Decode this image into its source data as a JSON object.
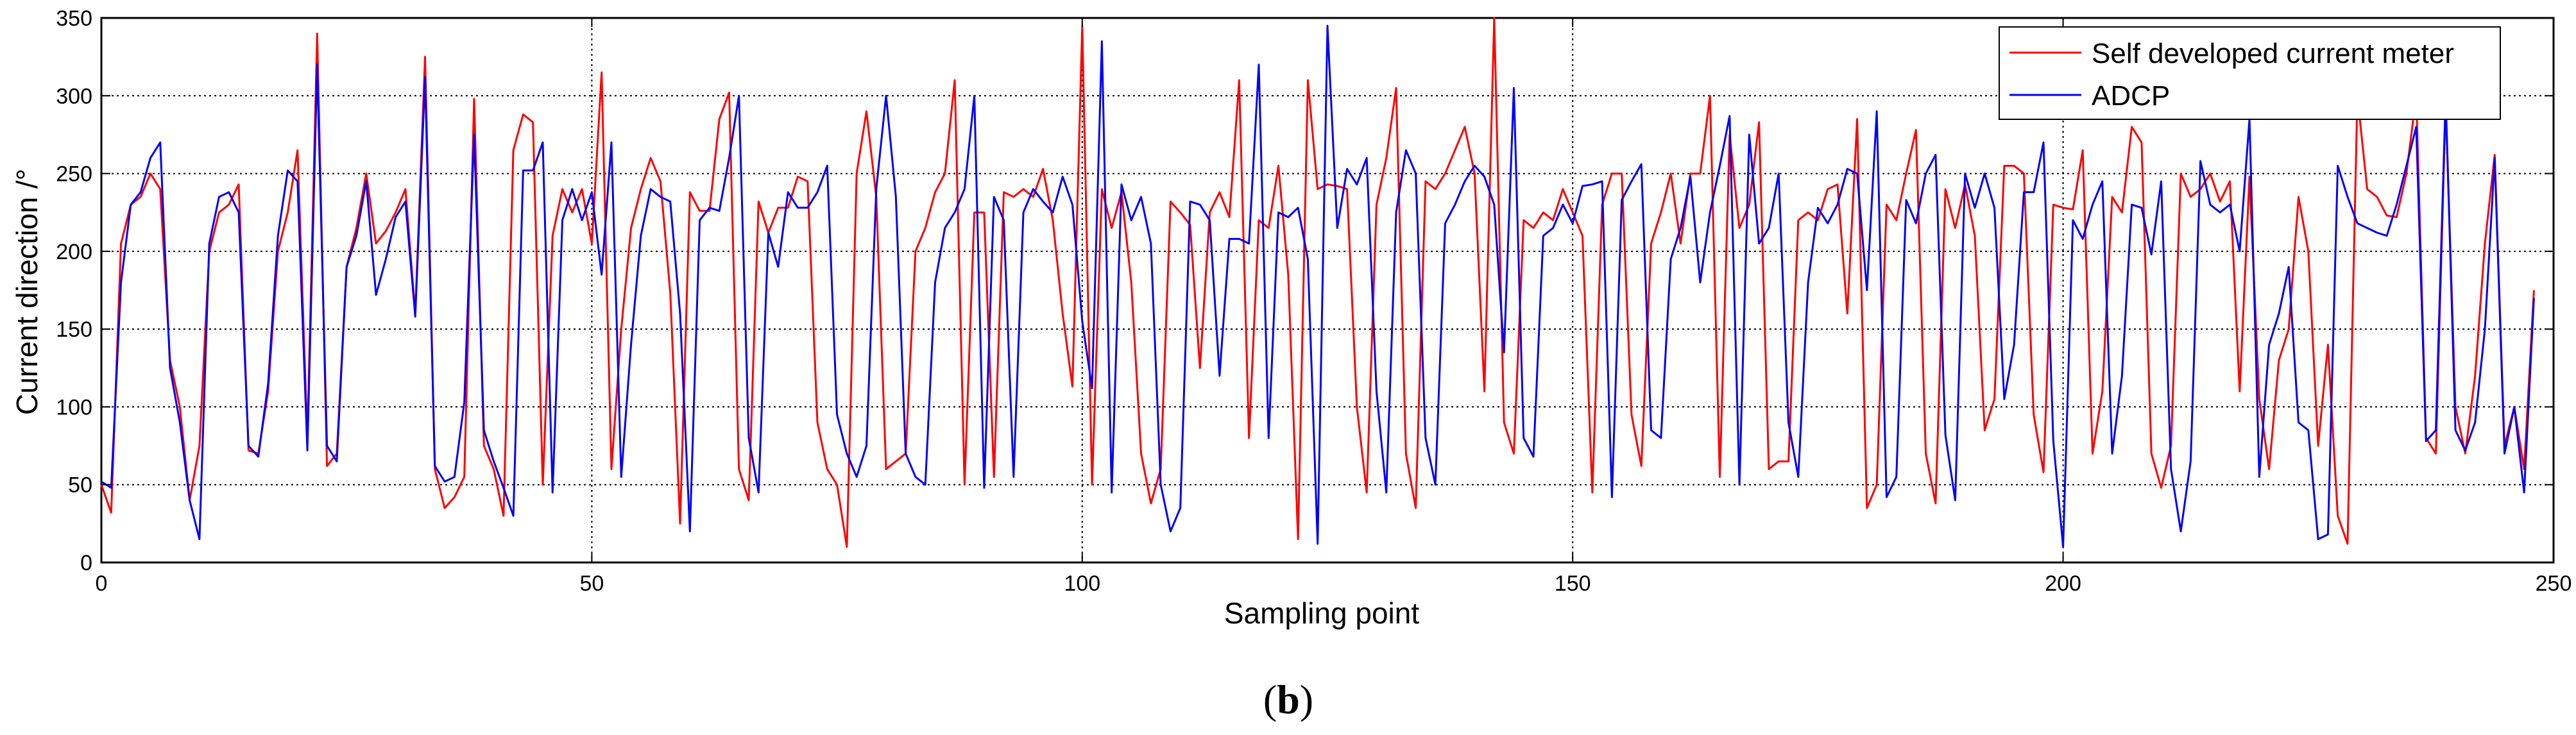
{
  "chart_data": {
    "type": "line",
    "xlabel": "Sampling point",
    "ylabel": "Current direction /°",
    "xlim": [
      0,
      250
    ],
    "ylim": [
      0,
      350
    ],
    "xticks": [
      0,
      50,
      100,
      150,
      200,
      250
    ],
    "yticks": [
      0,
      50,
      100,
      150,
      200,
      250,
      300,
      350
    ],
    "grid": true,
    "legend_position": "top-right",
    "caption_open": "(",
    "caption_letter": "b",
    "caption_close": ")",
    "series": [
      {
        "name": "Self developed current meter",
        "color": "#ff0000",
        "values": [
          50,
          32,
          205,
          230,
          235,
          250,
          240,
          130,
          100,
          40,
          75,
          200,
          225,
          230,
          243,
          72,
          70,
          110,
          200,
          225,
          265,
          80,
          340,
          62,
          70,
          190,
          215,
          250,
          205,
          213,
          225,
          240,
          160,
          325,
          60,
          35,
          42,
          55,
          298,
          75,
          60,
          30,
          265,
          288,
          283,
          50,
          210,
          240,
          225,
          240,
          205,
          315,
          60,
          150,
          215,
          240,
          260,
          245,
          173,
          25,
          238,
          226,
          226,
          285,
          302,
          60,
          40,
          232,
          212,
          228,
          228,
          248,
          245,
          90,
          60,
          50,
          10,
          250,
          290,
          235,
          60,
          65,
          70,
          200,
          215,
          238,
          250,
          310,
          50,
          225,
          225,
          55,
          238,
          235,
          240,
          235,
          253,
          220,
          160,
          113,
          345,
          50,
          240,
          215,
          238,
          180,
          70,
          38,
          60,
          232,
          225,
          217,
          125,
          225,
          238,
          222,
          310,
          80,
          220,
          215,
          255,
          185,
          15,
          310,
          240,
          243,
          242,
          240,
          100,
          45,
          230,
          260,
          305,
          70,
          35,
          245,
          240,
          250,
          265,
          280,
          250,
          110,
          350,
          90,
          70,
          220,
          215,
          225,
          220,
          240,
          225,
          210,
          45,
          230,
          250,
          250,
          95,
          62,
          205,
          225,
          250,
          205,
          250,
          250,
          300,
          55,
          275,
          215,
          230,
          283,
          60,
          65,
          65,
          220,
          225,
          220,
          240,
          243,
          160,
          285,
          35,
          50,
          230,
          220,
          250,
          278,
          70,
          38,
          240,
          215,
          243,
          210,
          85,
          105,
          255,
          255,
          250,
          95,
          58,
          230,
          228,
          227,
          265,
          70,
          110,
          235,
          225,
          280,
          270,
          70,
          48,
          75,
          250,
          235,
          240,
          250,
          232,
          245,
          110,
          248,
          105,
          60,
          130,
          150,
          235,
          200,
          75,
          140,
          30,
          12,
          300,
          240,
          235,
          223,
          222,
          250,
          300,
          80,
          70,
          295,
          100,
          70,
          120,
          205,
          262,
          75,
          100,
          60,
          175
        ]
      },
      {
        "name": "ADCP",
        "color": "#0000ff",
        "values": [
          52,
          48,
          180,
          230,
          238,
          260,
          270,
          125,
          90,
          40,
          15,
          205,
          235,
          238,
          225,
          75,
          68,
          115,
          210,
          252,
          245,
          72,
          320,
          75,
          65,
          190,
          210,
          245,
          172,
          195,
          222,
          232,
          158,
          312,
          62,
          52,
          55,
          103,
          275,
          85,
          65,
          48,
          30,
          252,
          252,
          270,
          45,
          220,
          240,
          220,
          238,
          185,
          270,
          55,
          140,
          210,
          240,
          235,
          232,
          160,
          20,
          220,
          228,
          226,
          260,
          300,
          80,
          45,
          212,
          190,
          238,
          228,
          228,
          238,
          255,
          95,
          70,
          55,
          75,
          240,
          300,
          235,
          70,
          55,
          50,
          180,
          215,
          225,
          240,
          300,
          48,
          235,
          220,
          55,
          225,
          240,
          232,
          225,
          248,
          230,
          155,
          112,
          335,
          45,
          243,
          220,
          235,
          205,
          50,
          20,
          35,
          232,
          230,
          220,
          120,
          208,
          208,
          205,
          320,
          80,
          225,
          222,
          228,
          195,
          12,
          345,
          215,
          253,
          243,
          260,
          110,
          45,
          225,
          265,
          250,
          80,
          50,
          218,
          230,
          245,
          255,
          248,
          230,
          135,
          305,
          80,
          68,
          210,
          215,
          230,
          218,
          242,
          243,
          245,
          42,
          233,
          245,
          256,
          85,
          80,
          195,
          215,
          248,
          180,
          225,
          255,
          287,
          50,
          275,
          205,
          215,
          250,
          90,
          55,
          180,
          228,
          218,
          230,
          253,
          250,
          175,
          290,
          42,
          55,
          233,
          218,
          250,
          262,
          82,
          40,
          250,
          228,
          250,
          228,
          105,
          140,
          238,
          238,
          270,
          78,
          10,
          220,
          208,
          230,
          245,
          70,
          120,
          230,
          228,
          198,
          245,
          60,
          20,
          65,
          258,
          230,
          225,
          230,
          200,
          285,
          55,
          140,
          160,
          190,
          90,
          85,
          15,
          18,
          255,
          235,
          218,
          215,
          212,
          210,
          230,
          255,
          280,
          78,
          85,
          300,
          85,
          72,
          90,
          150,
          260,
          70,
          100,
          45,
          170
        ]
      }
    ]
  }
}
